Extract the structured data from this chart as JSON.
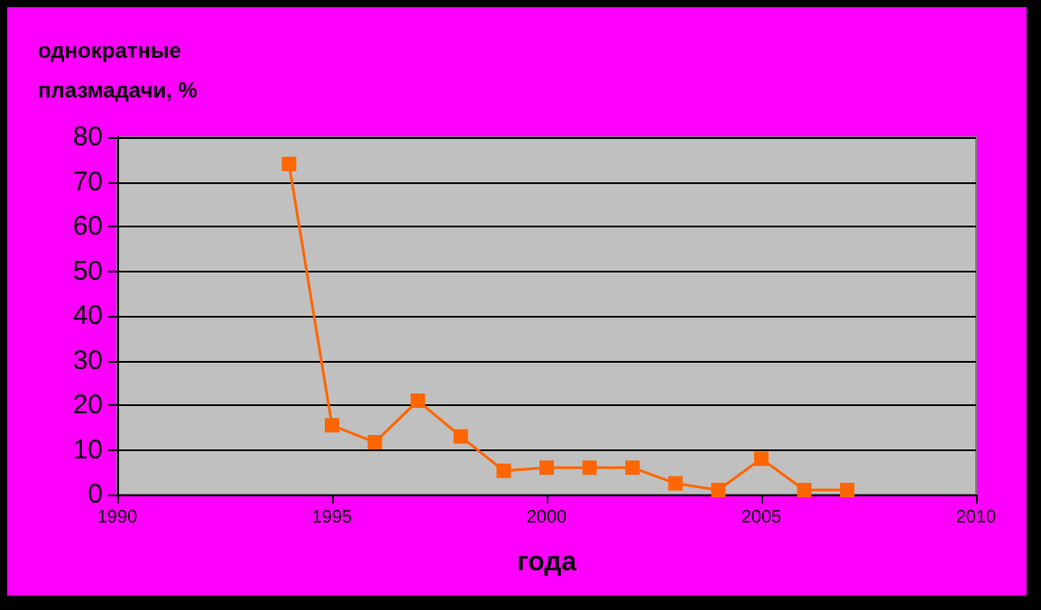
{
  "chart_data": {
    "type": "line",
    "ylabel": "однократные\nплазмадачи, %",
    "xlabel": "года",
    "x": [
      1994,
      1995,
      1996,
      1997,
      1998,
      1999,
      2000,
      2001,
      2002,
      2003,
      2004,
      2005,
      2006,
      2007
    ],
    "series": [
      {
        "color": "#ff6600",
        "values": [
          74,
          15.5,
          11.7,
          21,
          13,
          5.3,
          6,
          6,
          6,
          2.5,
          1,
          8,
          1,
          1
        ]
      }
    ],
    "xlim": [
      1990,
      2010
    ],
    "xticks": [
      1990,
      1995,
      2000,
      2005,
      2010
    ],
    "ylim": [
      0,
      80
    ],
    "yticks": [
      0,
      10,
      20,
      30,
      40,
      50,
      60,
      70,
      80
    ],
    "grid": "y",
    "marker": "square",
    "line_style": "solid"
  }
}
